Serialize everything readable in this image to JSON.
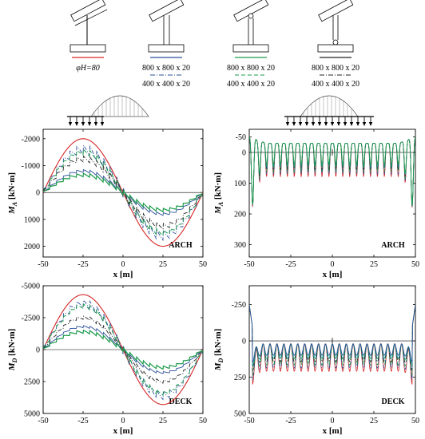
{
  "legend": {
    "items": [
      {
        "label": "φH=80",
        "color": "#d62728",
        "dash": "solid"
      },
      {
        "label": "800 x 800 x 20",
        "color": "#2c4f9a",
        "dash": "solid"
      },
      {
        "label": "800 x 800 x 20",
        "color": "#1a9a4a",
        "dash": "solid"
      },
      {
        "label": "800 x 800 x 20",
        "color": "#222222",
        "dash": "solid"
      }
    ],
    "sub_items": [
      {
        "label": "400 x 400 x 20",
        "color": "#2c4f9a",
        "dash": "dashdot"
      },
      {
        "label": "400 x 400 x 20",
        "color": "#1a9a4a",
        "dash": "dash"
      },
      {
        "label": "400 x 400 x 20",
        "color": "#222222",
        "dash": "dashdot"
      }
    ]
  },
  "colors": {
    "red": "#d62728",
    "blue": "#2c4f9a",
    "green": "#1a9a4a",
    "teal": "#1a9a8a",
    "black": "#222222"
  },
  "chart_data": [
    {
      "type": "line",
      "panel": "arch-left",
      "ylabel_main": "M",
      "ylabel_sub": "A",
      "ylabel_unit": "[kN·m]",
      "xlabel": "x [m]",
      "tag": "ARCH",
      "x_ticks": [
        "-50",
        "-25",
        "0",
        "25",
        "50"
      ],
      "y_ticks": [
        "-2000",
        "-1000",
        "0",
        "1000",
        "2000"
      ],
      "xlim": [
        -50,
        50
      ],
      "ylim": [
        2400,
        -2350
      ],
      "y_inverted": true,
      "series_shape": "antisymmetric",
      "amplitudes": [
        2000,
        1600,
        1500,
        1250,
        800,
        650
      ],
      "ripple": [
        0,
        400,
        250,
        250,
        120,
        150
      ]
    },
    {
      "type": "line",
      "panel": "arch-right",
      "ylabel_main": "M",
      "ylabel_sub": "A",
      "ylabel_unit": "[kN·m]",
      "xlabel": "x [m]",
      "tag": "ARCH",
      "x_ticks": [
        "-50",
        "-25",
        "0",
        "25",
        "50"
      ],
      "y_ticks": [
        "-50",
        "0",
        "100",
        "200",
        "300"
      ],
      "xlim": [
        -50,
        50
      ],
      "ylim": [
        340,
        -75
      ],
      "y_inverted": true,
      "series_shape": "periodic-spikes"
    },
    {
      "type": "line",
      "panel": "deck-left",
      "ylabel_main": "M",
      "ylabel_sub": "D",
      "ylabel_unit": "[kN·m]",
      "xlabel": "x [m]",
      "tag": "DECK",
      "x_ticks": [
        "-50",
        "-25",
        "0",
        "25",
        "50"
      ],
      "y_ticks": [
        "-5000",
        "-2500",
        "0",
        "2500",
        "5000"
      ],
      "xlim": [
        -50,
        50
      ],
      "ylim": [
        5000,
        -5000
      ],
      "y_inverted": true,
      "series_shape": "antisymmetric",
      "amplitudes": [
        4300,
        3600,
        3400,
        2500,
        1800,
        1400
      ],
      "ripple": [
        0,
        700,
        400,
        300,
        200,
        300
      ]
    },
    {
      "type": "line",
      "panel": "deck-right",
      "ylabel_main": "M",
      "ylabel_sub": "D",
      "ylabel_unit": "[kN·m]",
      "xlabel": "x [m]",
      "tag": "DECK",
      "x_ticks": [
        "-50",
        "-25",
        "0",
        "25",
        "50"
      ],
      "y_ticks": [
        "-250",
        "0",
        "250",
        "500"
      ],
      "xlim": [
        -50,
        50
      ],
      "ylim": [
        500,
        -380
      ],
      "y_inverted": true,
      "series_shape": "periodic-sag"
    }
  ]
}
